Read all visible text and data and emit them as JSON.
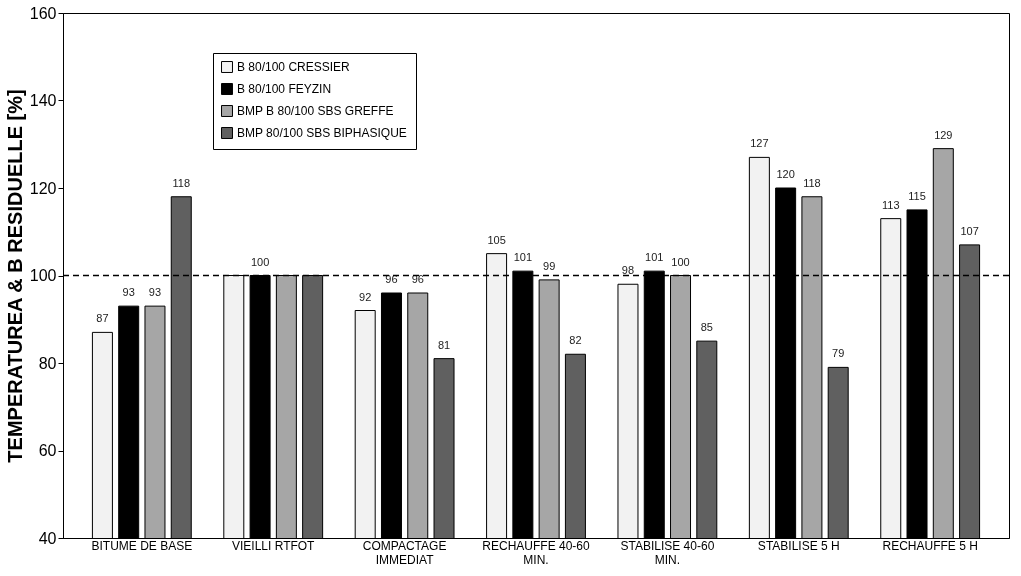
{
  "chart_data": {
    "type": "bar",
    "ylabel": "TEMPERATUREA & B RESIDUELLE [%]",
    "categories": [
      "BITUME DE BASE",
      "VIEILLI RTFOT",
      "COMPACTAGE IMMEDIAT",
      "RECHAUFFE 40-60 MIN.",
      "STABILISE 40-60 MIN.",
      "STABILISE 5 H",
      "RECHAUFFE 5 H"
    ],
    "series": [
      {
        "name": "B 80/100 CRESSIER",
        "color": "#f2f2f2",
        "values": [
          87,
          100,
          92,
          105,
          98,
          127,
          113
        ],
        "value_labels": [
          "87",
          null,
          "92",
          "105",
          "98",
          "127",
          "113"
        ]
      },
      {
        "name": "B 80/100 FEYZIN",
        "color": "#000000",
        "values": [
          93,
          100,
          96,
          101,
          101,
          120,
          115
        ],
        "value_labels": [
          "93",
          "100",
          "96",
          "101",
          "101",
          "120",
          "115"
        ]
      },
      {
        "name": "BMP B 80/100 SBS GREFFE",
        "color": "#a6a6a6",
        "values": [
          93,
          100,
          96,
          99,
          100,
          118,
          129
        ],
        "value_labels": [
          "93",
          null,
          "96",
          "99",
          "100",
          "118",
          "129"
        ]
      },
      {
        "name": "BMP 80/100 SBS BIPHASIQUE",
        "color": "#606060",
        "values": [
          118,
          100,
          81,
          82,
          85,
          79,
          107
        ],
        "value_labels": [
          "118",
          null,
          "81",
          "82",
          "85",
          "79",
          "107"
        ]
      }
    ],
    "ylim": [
      40,
      160
    ],
    "yticks": [
      40,
      60,
      80,
      100,
      120,
      140,
      160
    ],
    "ref_lines": [
      {
        "axis": "y",
        "value": 100,
        "line_style": "dashed",
        "color": "#000000"
      }
    ],
    "legend": "top left",
    "grid": false
  }
}
